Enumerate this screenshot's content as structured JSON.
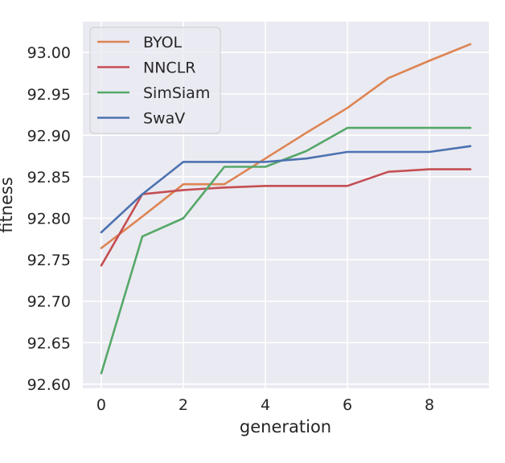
{
  "chart_data": {
    "type": "line",
    "title": "",
    "xlabel": "generation",
    "ylabel": "fitness",
    "xlim": [
      -0.45,
      9.45
    ],
    "ylim": [
      92.595,
      93.037
    ],
    "xticks": [
      0,
      2,
      4,
      6,
      8
    ],
    "yticks": [
      92.6,
      92.65,
      92.7,
      92.75,
      92.8,
      92.85,
      92.9,
      92.95,
      93.0
    ],
    "grid": true,
    "legend_position": "top-left",
    "x": [
      0,
      1,
      2,
      3,
      4,
      5,
      6,
      7,
      8,
      9
    ],
    "series": [
      {
        "name": "BYOL",
        "color": "#dd8452",
        "values": [
          92.764,
          92.802,
          92.841,
          92.841,
          92.872,
          92.903,
          92.933,
          92.969,
          92.99,
          93.01
        ]
      },
      {
        "name": "NNCLR",
        "color": "#c44e52",
        "values": [
          92.743,
          92.829,
          92.834,
          92.837,
          92.839,
          92.839,
          92.839,
          92.856,
          92.859,
          92.859
        ]
      },
      {
        "name": "SimSiam",
        "color": "#55a868",
        "values": [
          92.613,
          92.778,
          92.8,
          92.862,
          92.862,
          92.881,
          92.909,
          92.909,
          92.909,
          92.909
        ]
      },
      {
        "name": "SwaV",
        "color": "#4c72b0",
        "values": [
          92.783,
          92.829,
          92.868,
          92.868,
          92.868,
          92.872,
          92.88,
          92.88,
          92.88,
          92.887
        ]
      }
    ]
  }
}
